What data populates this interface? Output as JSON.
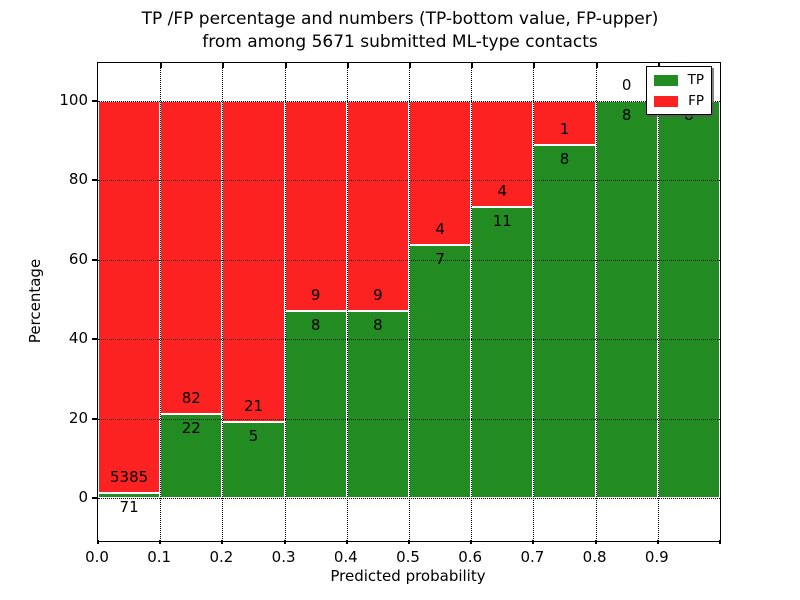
{
  "figure": {
    "title_line1": "TP /FP percentage and numbers (TP-bottom value, FP-upper)",
    "title_line2": "from among 5671 submitted ML-type contacts"
  },
  "chart_data": {
    "type": "bar",
    "stacked": true,
    "normalized_to_percent": true,
    "title": "TP /FP percentage and numbers (TP-bottom value, FP-upper) from among 5671 submitted ML-type contacts",
    "xlabel": "Predicted probability",
    "ylabel": "Percentage",
    "total_contacts": 5671,
    "bin_width": 0.1,
    "categories": [
      "0.0-0.1",
      "0.1-0.2",
      "0.2-0.3",
      "0.3-0.4",
      "0.4-0.5",
      "0.5-0.6",
      "0.6-0.7",
      "0.7-0.8",
      "0.8-0.9",
      "0.9-1.0"
    ],
    "series": [
      {
        "name": "TP",
        "color": "#228b22",
        "values": [
          71,
          22,
          5,
          8,
          8,
          7,
          11,
          8,
          8,
          8
        ]
      },
      {
        "name": "FP",
        "color": "#fc2222",
        "values": [
          5385,
          82,
          21,
          9,
          9,
          4,
          4,
          1,
          0,
          0
        ]
      }
    ],
    "tp_percent_of_bin": [
      1.3,
      21.2,
      19.2,
      47.1,
      47.1,
      63.6,
      73.3,
      88.9,
      100.0,
      100.0
    ],
    "x_tick_labels": [
      "0.0",
      "0.1",
      "0.2",
      "0.3",
      "0.4",
      "0.5",
      "0.6",
      "0.7",
      "0.8",
      "0.9"
    ],
    "y_tick_values": [
      0,
      20,
      40,
      60,
      80,
      100
    ],
    "xlim": [
      0.0,
      1.0
    ],
    "ylim": [
      -10.8,
      109.6
    ],
    "grid": "dotted black, drawn over bars",
    "legend": {
      "position": "upper right",
      "entries": [
        {
          "label": "TP",
          "color": "#228b22"
        },
        {
          "label": "FP",
          "color": "#fc2222"
        }
      ]
    }
  }
}
